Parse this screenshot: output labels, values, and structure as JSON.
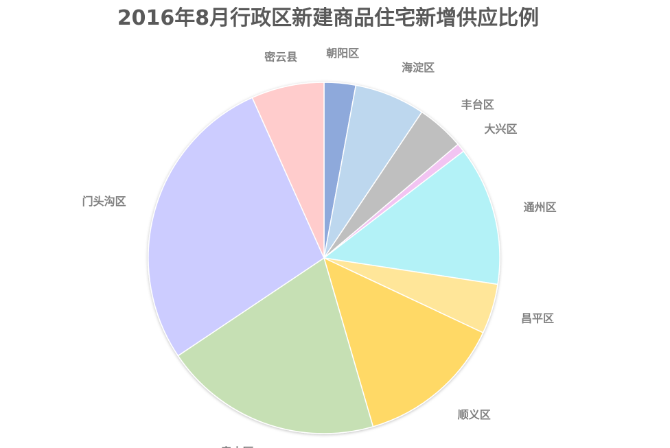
{
  "chart_data": {
    "type": "pie",
    "title": "2016年8月行政区新建商品住宅新增供应比例",
    "legend": "none",
    "slices": [
      {
        "label": "朝阳区",
        "value": 2.9,
        "color": "#8EA9DB"
      },
      {
        "label": "海淀区",
        "value": 6.5,
        "color": "#BDD7EE"
      },
      {
        "label": "丰台区",
        "value": 4.4,
        "color": "#BFBFBF"
      },
      {
        "label": "大兴区",
        "value": 0.8,
        "color": "#F2C4F2"
      },
      {
        "label": "通州区",
        "value": 12.8,
        "color": "#B3F2F7"
      },
      {
        "label": "昌平区",
        "value": 4.6,
        "color": "#FFE699"
      },
      {
        "label": "顺义区",
        "value": 13.5,
        "color": "#FFD966"
      },
      {
        "label": "房山区",
        "value": 20.1,
        "color": "#C6E0B4"
      },
      {
        "label": "门头沟区",
        "value": 27.7,
        "color": "#CCCCFF"
      },
      {
        "label": "密云县",
        "value": 6.7,
        "color": "#FFCCCC"
      }
    ]
  }
}
